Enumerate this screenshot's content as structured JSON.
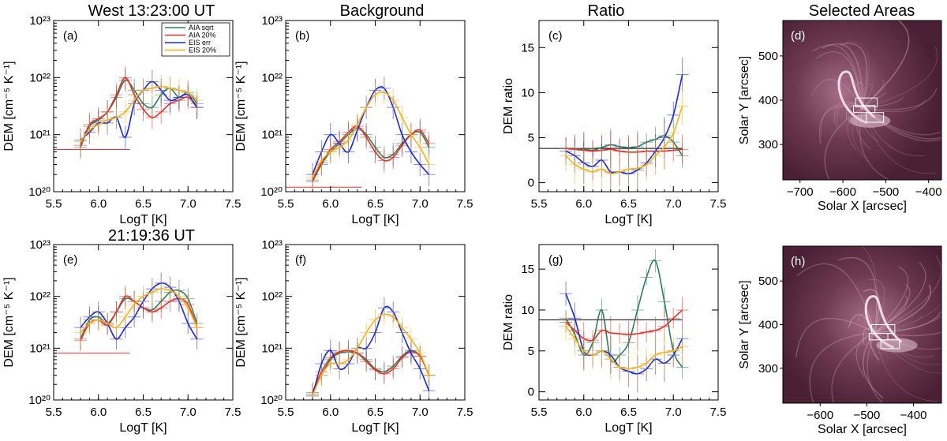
{
  "column_titles": [
    "West 13:23:00 UT",
    "Background",
    "Ratio",
    "Selected Areas"
  ],
  "row2_title": "21:19:36 UT",
  "colors": {
    "aia_sqrt": "#2e7d5b",
    "aia_20": "#e8302a",
    "eis_err": "#1a2ad8",
    "eis_20": "#f5b21e",
    "image_bg": "#5a2a40"
  },
  "chart_data": [
    {
      "id": "a",
      "panel_label": "(a)",
      "type": "line",
      "xlabel": "LogT [K]",
      "ylabel": "DEM [cm⁻⁵ K⁻¹]",
      "xlim": [
        5.5,
        7.5
      ],
      "ylog": true,
      "ylim": [
        1e+20,
        1e+23
      ],
      "x_ticks": [
        "5.5",
        "6.0",
        "6.5",
        "7.0",
        "7.5"
      ],
      "y_ticks": [
        "10²⁰",
        "10²¹",
        "10²²",
        "10²³"
      ],
      "legend": [
        "AIA sqrt",
        "AIA 20%",
        "EIS err",
        "EIS 20%"
      ],
      "x": [
        5.8,
        5.9,
        6.0,
        6.1,
        6.2,
        6.3,
        6.4,
        6.5,
        6.6,
        6.7,
        6.8,
        6.9,
        7.0,
        7.1
      ],
      "baseline": {
        "x": [
          5.5,
          6.35
        ],
        "y": 5.5e+20
      },
      "series": [
        {
          "name": "AIA sqrt",
          "values": [
            6e+20,
            1.4e+21,
            1.8e+21,
            2.5e+21,
            4.5e+21,
            9e+21,
            6e+21,
            3.5e+21,
            3e+21,
            5e+21,
            6.5e+21,
            4.5e+21,
            5.5e+21,
            3.5e+21
          ]
        },
        {
          "name": "AIA 20%",
          "values": [
            6.5e+20,
            1.5e+21,
            1.9e+21,
            2.5e+21,
            5e+21,
            1e+22,
            5e+21,
            2.8e+21,
            2e+21,
            2.5e+21,
            3.5e+21,
            4e+21,
            4.5e+21,
            3e+21
          ]
        },
        {
          "name": "EIS err",
          "values": [
            8e+20,
            1.1e+21,
            1.6e+21,
            1.6e+21,
            2e+21,
            9e+20,
            3.5e+21,
            6e+21,
            8.5e+21,
            6e+21,
            4e+21,
            4.5e+21,
            5e+21,
            3e+21
          ]
        },
        {
          "name": "EIS 20%",
          "values": [
            7.5e+20,
            1.2e+21,
            1.5e+21,
            1.8e+21,
            2e+21,
            2.5e+21,
            4e+21,
            6e+21,
            6.5e+21,
            7e+21,
            6.5e+21,
            6e+21,
            5.5e+21,
            4e+21
          ]
        }
      ]
    },
    {
      "id": "b",
      "panel_label": "(b)",
      "type": "line",
      "xlabel": "LogT [K]",
      "ylabel": "DEM [cm⁻⁵ K⁻¹]",
      "xlim": [
        5.5,
        7.5
      ],
      "ylog": true,
      "ylim": [
        1e+20,
        1e+23
      ],
      "x_ticks": [
        "5.5",
        "6.0",
        "6.5",
        "7.0",
        "7.5"
      ],
      "y_ticks": [
        "10²⁰",
        "10²¹",
        "10²²",
        "10²³"
      ],
      "x": [
        5.8,
        5.9,
        6.0,
        6.1,
        6.2,
        6.3,
        6.4,
        6.5,
        6.6,
        6.7,
        6.8,
        6.9,
        7.0,
        7.1
      ],
      "baseline": {
        "x": [
          5.5,
          6.35
        ],
        "y": 1.2e+20
      },
      "series": [
        {
          "name": "AIA sqrt",
          "values": [
            1.5e+20,
            3e+20,
            5e+20,
            7e+20,
            1e+21,
            1.3e+21,
            1e+21,
            6e+20,
            4e+20,
            4.5e+20,
            7e+20,
            1e+21,
            1.1e+21,
            6e+20
          ]
        },
        {
          "name": "AIA 20%",
          "values": [
            1.6e+20,
            3.2e+20,
            5.5e+20,
            7.5e+20,
            1.1e+21,
            1.4e+21,
            9e+20,
            5e+20,
            3.5e+20,
            4e+20,
            6.5e+20,
            1e+21,
            1.2e+21,
            7e+20
          ]
        },
        {
          "name": "EIS err",
          "values": [
            2e+20,
            5e+20,
            1e+21,
            7e+20,
            5e+20,
            1.2e+21,
            3e+21,
            6e+21,
            6.5e+21,
            3e+21,
            1e+21,
            5e+20,
            3e+20,
            2e+20
          ]
        },
        {
          "name": "EIS 20%",
          "values": [
            1.8e+20,
            3.5e+20,
            5e+20,
            6e+20,
            8e+20,
            1.5e+21,
            3e+21,
            5e+21,
            5.5e+21,
            4e+21,
            2e+21,
            1e+21,
            6e+20,
            3e+20
          ]
        }
      ]
    },
    {
      "id": "c",
      "panel_label": "(c)",
      "type": "line",
      "xlabel": "LogT [K]",
      "ylabel": "DEM ratio",
      "xlim": [
        5.5,
        7.5
      ],
      "ylog": false,
      "ylim": [
        -1,
        18
      ],
      "x_tick_values": [
        5.5,
        6.0,
        6.5,
        7.0,
        7.5
      ],
      "x_ticks": [
        "5.5",
        "6.0",
        "6.5",
        "7.0",
        "7.5"
      ],
      "y_tick_values": [
        0,
        5,
        10,
        15
      ],
      "y_ticks": [
        "0",
        "5",
        "10",
        "15"
      ],
      "x": [
        5.8,
        5.9,
        6.0,
        6.1,
        6.2,
        6.3,
        6.4,
        6.5,
        6.6,
        6.7,
        6.8,
        6.9,
        7.0,
        7.1
      ],
      "baseline": {
        "x": [
          5.5,
          7.1
        ],
        "y": 3.8
      },
      "series": [
        {
          "name": "AIA sqrt",
          "values": [
            3.8,
            3.8,
            3.7,
            3.6,
            3.9,
            4.2,
            4.0,
            3.9,
            4.0,
            4.5,
            4.8,
            5.2,
            4.5,
            3.0
          ]
        },
        {
          "name": "AIA 20%",
          "values": [
            3.8,
            3.7,
            3.6,
            3.5,
            3.6,
            3.7,
            3.5,
            3.4,
            3.4,
            3.5,
            3.5,
            3.5,
            3.6,
            3.7
          ]
        },
        {
          "name": "EIS err",
          "values": [
            3.5,
            3.0,
            2.2,
            1.8,
            2.5,
            1.2,
            1.2,
            1.0,
            1.4,
            2.2,
            3.5,
            5.0,
            7.5,
            12.0
          ]
        },
        {
          "name": "EIS 20%",
          "values": [
            3.0,
            2.0,
            1.5,
            1.2,
            1.5,
            1.0,
            1.2,
            1.5,
            1.6,
            2.0,
            3.0,
            4.0,
            5.5,
            8.5
          ]
        }
      ]
    },
    {
      "id": "e",
      "panel_label": "(e)",
      "type": "line",
      "xlabel": "LogT [K]",
      "ylabel": "DEM [cm⁻⁵ K⁻¹]",
      "xlim": [
        5.5,
        7.5
      ],
      "ylog": true,
      "ylim": [
        1e+20,
        1e+23
      ],
      "x_ticks": [
        "5.5",
        "6.0",
        "6.5",
        "7.0",
        "7.5"
      ],
      "y_ticks": [
        "10²⁰",
        "10²¹",
        "10²²",
        "10²³"
      ],
      "x": [
        5.8,
        5.9,
        6.0,
        6.1,
        6.2,
        6.3,
        6.4,
        6.5,
        6.6,
        6.7,
        6.8,
        6.9,
        7.0,
        7.1
      ],
      "baseline": {
        "x": [
          5.5,
          6.35
        ],
        "y": 8e+20
      },
      "series": [
        {
          "name": "AIA sqrt",
          "values": [
            1.5e+21,
            3.5e+21,
            4e+21,
            3e+21,
            5e+21,
            9e+21,
            8e+21,
            6e+21,
            5.5e+21,
            8e+21,
            1.2e+22,
            1.3e+22,
            9e+21,
            3e+21
          ]
        },
        {
          "name": "AIA 20%",
          "values": [
            1.4e+21,
            3e+21,
            3.5e+21,
            2.8e+21,
            5e+21,
            1e+22,
            8e+21,
            6e+21,
            5e+21,
            6e+21,
            8e+21,
            9e+21,
            7e+21,
            2.5e+21
          ]
        },
        {
          "name": "EIS err",
          "values": [
            2.5e+21,
            4e+21,
            5e+21,
            3e+21,
            1.5e+21,
            2.5e+21,
            4e+21,
            8e+21,
            1.4e+22,
            1.8e+22,
            1.5e+22,
            8e+21,
            3e+21,
            1.5e+21
          ]
        },
        {
          "name": "EIS 20%",
          "values": [
            2e+21,
            3e+21,
            3.5e+21,
            3e+21,
            2.5e+21,
            4e+21,
            7e+21,
            1e+22,
            1.2e+22,
            1.4e+22,
            1.3e+22,
            1e+22,
            6e+21,
            2.5e+21
          ]
        }
      ]
    },
    {
      "id": "f",
      "panel_label": "(f)",
      "type": "line",
      "xlabel": "LogT [K]",
      "ylabel": "DEM [cm⁻⁵ K⁻¹]",
      "xlim": [
        5.5,
        7.5
      ],
      "ylog": true,
      "ylim": [
        1e+20,
        1e+23
      ],
      "x_ticks": [
        "5.5",
        "6.0",
        "6.5",
        "7.0",
        "7.5"
      ],
      "y_ticks": [
        "10²⁰",
        "10²¹",
        "10²²",
        "10²³"
      ],
      "x": [
        5.8,
        5.9,
        6.0,
        6.1,
        6.2,
        6.3,
        6.4,
        6.5,
        6.6,
        6.7,
        6.8,
        6.9,
        7.0,
        7.1
      ],
      "series": [
        {
          "name": "AIA sqrt",
          "values": [
            1.3e+20,
            3e+20,
            6e+20,
            8e+20,
            8.5e+20,
            8e+20,
            6e+20,
            4e+20,
            3.5e+20,
            4.5e+20,
            7e+20,
            9e+20,
            7e+20,
            3e+20
          ]
        },
        {
          "name": "AIA 20%",
          "values": [
            1.4e+20,
            3.5e+20,
            6.5e+20,
            8.5e+20,
            9e+20,
            8e+20,
            5.5e+20,
            3.8e+20,
            3.2e+20,
            4e+20,
            6.5e+20,
            8.5e+20,
            7e+20,
            3e+20
          ]
        },
        {
          "name": "EIS err",
          "values": [
            1.2e+20,
            5e+20,
            9e+20,
            4e+20,
            5e+20,
            1e+21,
            1e+21,
            2e+21,
            6e+21,
            5e+21,
            2e+21,
            8e+20,
            4e+20,
            1.5e+20
          ]
        },
        {
          "name": "EIS 20%",
          "values": [
            1.2e+20,
            3e+20,
            5e+20,
            5e+20,
            6e+20,
            1e+21,
            2e+21,
            3.5e+21,
            4.5e+21,
            4e+21,
            2.5e+21,
            1.5e+21,
            8e+20,
            3e+20
          ]
        }
      ]
    },
    {
      "id": "g",
      "panel_label": "(g)",
      "type": "line",
      "xlabel": "LogT [K]",
      "ylabel": "DEM ratio",
      "xlim": [
        5.5,
        7.5
      ],
      "ylog": false,
      "ylim": [
        -1,
        18
      ],
      "x_tick_values": [
        5.5,
        6.0,
        6.5,
        7.0,
        7.5
      ],
      "x_ticks": [
        "5.5",
        "6.0",
        "6.5",
        "7.0",
        "7.5"
      ],
      "y_tick_values": [
        0,
        5,
        10,
        15
      ],
      "y_ticks": [
        "0",
        "5",
        "10",
        "15"
      ],
      "x": [
        5.8,
        5.9,
        6.0,
        6.1,
        6.2,
        6.3,
        6.4,
        6.5,
        6.6,
        6.7,
        6.8,
        6.9,
        7.0,
        7.1
      ],
      "baseline": {
        "x": [
          5.5,
          7.1
        ],
        "y": 8.8
      },
      "series": [
        {
          "name": "AIA sqrt",
          "values": [
            9.0,
            7.0,
            4.5,
            6.0,
            10.0,
            4.0,
            4.5,
            6.0,
            10.0,
            14.0,
            16.0,
            11.0,
            5.0,
            3.0
          ]
        },
        {
          "name": "AIA 20%",
          "values": [
            8.5,
            7.5,
            6.5,
            6.3,
            7.5,
            7.2,
            7.1,
            7.0,
            7.1,
            7.3,
            7.5,
            8.0,
            9.0,
            10.0
          ]
        },
        {
          "name": "EIS err",
          "values": [
            12.0,
            9.0,
            5.0,
            4.5,
            5.0,
            4.5,
            3.0,
            2.5,
            2.2,
            2.8,
            4.0,
            3.5,
            4.5,
            6.5
          ]
        },
        {
          "name": "EIS 20%",
          "values": [
            8.0,
            6.5,
            5.0,
            4.5,
            5.0,
            4.0,
            3.0,
            2.8,
            3.0,
            3.5,
            4.5,
            4.8,
            5.0,
            5.5
          ]
        }
      ]
    },
    {
      "id": "d",
      "panel_label": "(d)",
      "type": "image",
      "xlabel": "Solar X [arcsec]",
      "ylabel": "Solar Y [arcsec]",
      "xlim": [
        -740,
        -370
      ],
      "ylim": [
        220,
        580
      ],
      "x_tick_values": [
        -700,
        -600,
        -500,
        -400
      ],
      "x_ticks": [
        "−700",
        "−600",
        "−500",
        "−400"
      ],
      "y_tick_values": [
        300,
        400,
        500
      ],
      "y_ticks": [
        "300",
        "400",
        "500"
      ],
      "boxes": [
        {
          "x0": -570,
          "x1": -520,
          "y0": 385,
          "y1": 405
        },
        {
          "x0": -545,
          "x1": -505,
          "y0": 350,
          "y1": 372
        },
        {
          "x0": -575,
          "x1": -525,
          "y0": 372,
          "y1": 388
        }
      ]
    },
    {
      "id": "h",
      "panel_label": "(h)",
      "type": "image",
      "xlabel": "Solar X [arcsec]",
      "ylabel": "Solar Y [arcsec]",
      "xlim": [
        -680,
        -340
      ],
      "ylim": [
        220,
        580
      ],
      "x_tick_values": [
        -600,
        -500,
        -400
      ],
      "x_ticks": [
        "−600",
        "−500",
        "−400"
      ],
      "y_tick_values": [
        300,
        400,
        500
      ],
      "y_ticks": [
        "300",
        "400",
        "500"
      ],
      "boxes": [
        {
          "x0": -490,
          "x1": -440,
          "y0": 380,
          "y1": 400
        },
        {
          "x0": -470,
          "x1": -430,
          "y0": 345,
          "y1": 365
        },
        {
          "x0": -495,
          "x1": -455,
          "y0": 365,
          "y1": 380
        }
      ]
    }
  ]
}
